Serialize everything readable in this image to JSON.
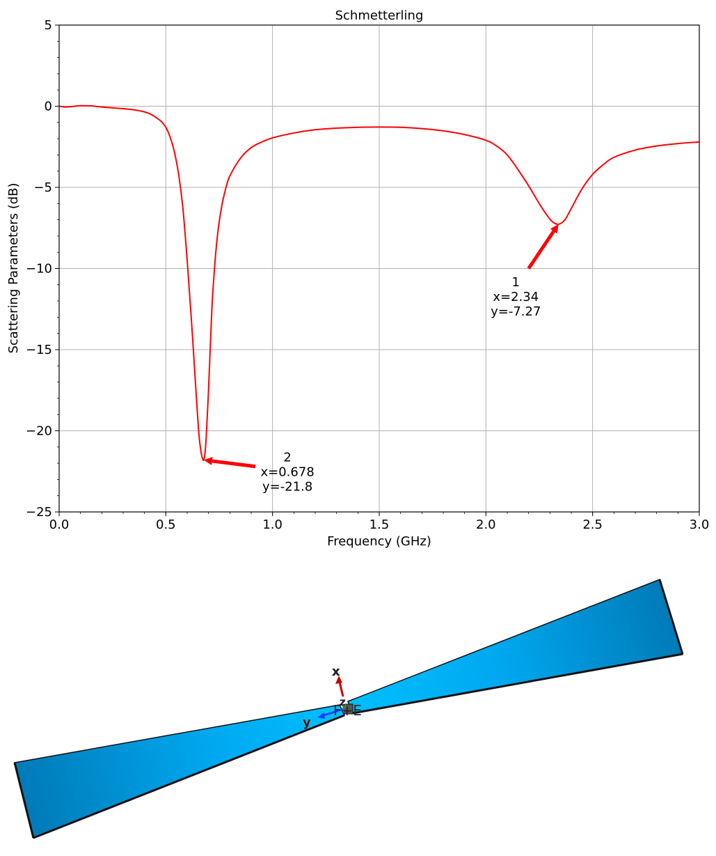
{
  "chart_data": {
    "type": "line",
    "title": "Schmetterling",
    "xlabel": "Frequency (GHz)",
    "ylabel": "Scattering Parameters (dB)",
    "xlim": [
      0.0,
      3.0
    ],
    "ylim": [
      -25,
      5
    ],
    "x_ticks": [
      0.0,
      0.5,
      1.0,
      1.5,
      2.0,
      2.5,
      3.0
    ],
    "x_tick_labels": [
      "0.0",
      "0.5",
      "1.0",
      "1.5",
      "2.0",
      "2.5",
      "3.0"
    ],
    "y_ticks": [
      -25,
      -20,
      -15,
      -10,
      -5,
      0,
      5
    ],
    "y_tick_labels": [
      "−25",
      "−20",
      "−15",
      "−10",
      "−5",
      "0",
      "5"
    ],
    "grid": true,
    "series": [
      {
        "color": "#ff0000",
        "x": [
          0.0,
          0.03,
          0.06,
          0.1,
          0.15,
          0.2,
          0.25,
          0.3,
          0.35,
          0.4,
          0.43,
          0.46,
          0.48,
          0.5,
          0.52,
          0.54,
          0.56,
          0.58,
          0.6,
          0.62,
          0.64,
          0.655,
          0.665,
          0.672,
          0.678,
          0.684,
          0.69,
          0.7,
          0.71,
          0.72,
          0.74,
          0.76,
          0.78,
          0.8,
          0.85,
          0.9,
          0.95,
          1.0,
          1.1,
          1.2,
          1.3,
          1.4,
          1.5,
          1.6,
          1.7,
          1.8,
          1.9,
          2.0,
          2.05,
          2.1,
          2.15,
          2.2,
          2.25,
          2.28,
          2.31,
          2.34,
          2.37,
          2.4,
          2.45,
          2.5,
          2.55,
          2.6,
          2.7,
          2.8,
          2.9,
          3.0
        ],
        "y": [
          0.0,
          -0.05,
          -0.02,
          0.03,
          0.02,
          -0.05,
          -0.1,
          -0.15,
          -0.22,
          -0.35,
          -0.5,
          -0.75,
          -0.95,
          -1.3,
          -1.9,
          -2.8,
          -4.2,
          -6.3,
          -9.5,
          -13.2,
          -17.3,
          -20.2,
          -21.3,
          -21.7,
          -21.8,
          -21.3,
          -20.2,
          -17.5,
          -14.3,
          -11.5,
          -8.2,
          -6.3,
          -5.1,
          -4.3,
          -3.2,
          -2.55,
          -2.2,
          -1.95,
          -1.65,
          -1.45,
          -1.35,
          -1.3,
          -1.28,
          -1.3,
          -1.38,
          -1.52,
          -1.75,
          -2.1,
          -2.45,
          -3.0,
          -3.9,
          -4.9,
          -6.0,
          -6.6,
          -7.1,
          -7.27,
          -7.0,
          -6.3,
          -5.1,
          -4.2,
          -3.6,
          -3.15,
          -2.7,
          -2.45,
          -2.3,
          -2.2
        ]
      }
    ],
    "annotations": [
      {
        "label": "1",
        "line2": "x=2.34",
        "line3": "y=-7.27",
        "point": [
          2.34,
          -7.27
        ],
        "text_at": [
          2.14,
          -12.0
        ],
        "tail": [
          2.2,
          -10.0
        ],
        "color": "#ff0000"
      },
      {
        "label": "2",
        "line2": "x=0.678",
        "line3": "y=-21.8",
        "point": [
          0.678,
          -21.8
        ],
        "text_at": [
          1.07,
          -22.8
        ],
        "tail": [
          0.92,
          -22.2
        ],
        "color": "#ff0000"
      }
    ]
  },
  "model_view": {
    "axis_x": "x",
    "axis_y": "y",
    "axis_z": "z",
    "feed_label": "F+E",
    "fill_light": "#00bfff",
    "fill_dark": "#0078b4",
    "x_arrow_color": "#cc0000",
    "y_arrow_color": "#1e40ff"
  }
}
